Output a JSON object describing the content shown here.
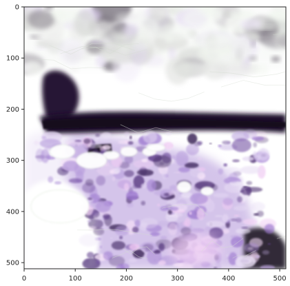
{
  "chart_data": {
    "type": "heatmap",
    "title": "",
    "xlabel": "",
    "ylabel": "",
    "xlim": [
      0,
      512
    ],
    "ylim": [
      512,
      0
    ],
    "x_ticks": [
      0,
      100,
      200,
      300,
      400,
      500
    ],
    "y_ticks": [
      0,
      100,
      200,
      300,
      400,
      500
    ],
    "x_tick_labels": [
      "0",
      "100",
      "200",
      "300",
      "400",
      "500"
    ],
    "y_tick_labels": [
      "0",
      "100",
      "200",
      "300",
      "400",
      "500"
    ],
    "grid": false,
    "colors": {
      "background": "#ffffff",
      "dark": "#12071a",
      "purple": "#8d63c8",
      "light_purple": "#d9c8ee",
      "gray": "#b9bbb6",
      "pale_green": "#e4ede0",
      "pink": "#e9b4ee"
    },
    "regions": [
      {
        "label": "dark horizontal band",
        "x": [
          30,
          512
        ],
        "y": [
          205,
          250
        ],
        "intensity": "high"
      },
      {
        "label": "dark upper-left mass",
        "x": [
          35,
          110
        ],
        "y": [
          125,
          235
        ],
        "intensity": "high"
      },
      {
        "label": "purple lower-central textured area",
        "x": [
          20,
          460
        ],
        "y": [
          240,
          512
        ],
        "intensity": "medium"
      },
      {
        "label": "dark lower-right blotch",
        "x": [
          430,
          512
        ],
        "y": [
          430,
          512
        ],
        "intensity": "high"
      },
      {
        "label": "light gray upper texture",
        "x": [
          0,
          512
        ],
        "y": [
          0,
          120
        ],
        "intensity": "low"
      }
    ]
  }
}
